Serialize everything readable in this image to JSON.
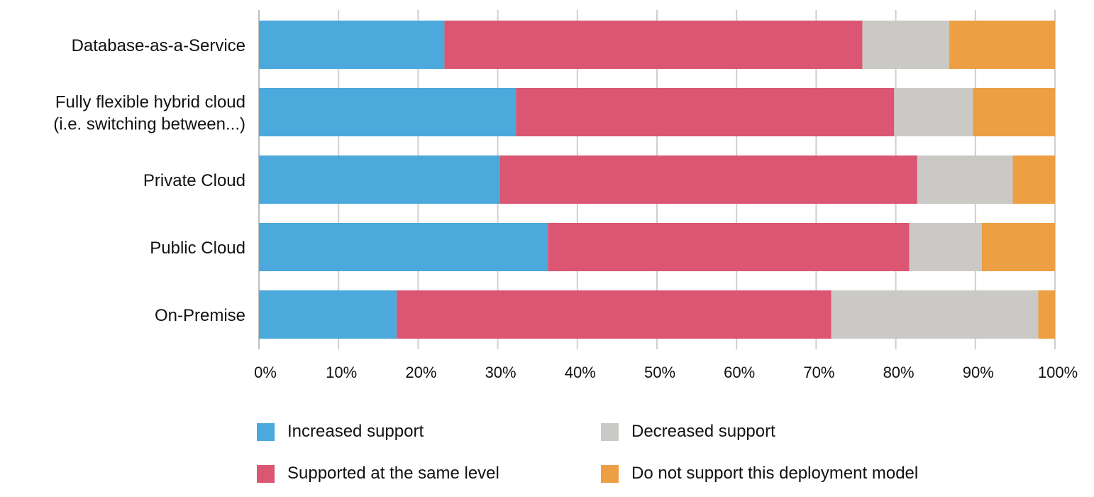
{
  "chart_data": {
    "type": "bar",
    "orientation": "horizontal",
    "stacked": "percent",
    "categories": [
      [
        "Database-as-a-Service"
      ],
      [
        "Fully flexible hybrid cloud",
        "(i.e. switching between...)"
      ],
      [
        "Private Cloud"
      ],
      [
        "Public Cloud"
      ],
      [
        "On-Premise"
      ]
    ],
    "series": [
      {
        "name": "Increased support",
        "color": "#4BA9DB",
        "values": [
          23.3,
          32.3,
          30.3,
          36.3,
          17.3
        ]
      },
      {
        "name": "Supported at the same level",
        "color": "#DB5672",
        "values": [
          52.5,
          47.5,
          52.4,
          45.4,
          54.6
        ]
      },
      {
        "name": "Decreased support",
        "color": "#CBC9C6",
        "values": [
          10.9,
          9.9,
          12.0,
          9.1,
          26.0
        ]
      },
      {
        "name": "Do not support this deployment model",
        "color": "#EC9F43",
        "values": [
          13.3,
          10.3,
          5.3,
          9.2,
          2.1
        ]
      }
    ],
    "xlim": [
      0,
      100
    ],
    "xticks": [
      "0%",
      "10%",
      "20%",
      "30%",
      "40%",
      "50%",
      "60%",
      "70%",
      "80%",
      "90%",
      "100%"
    ],
    "grid": "vertical",
    "legend_position": "bottom"
  },
  "legend": {
    "items": [
      {
        "label": "Increased support",
        "color": "#4BA9DB"
      },
      {
        "label": "Decreased support",
        "color": "#CBC9C6"
      },
      {
        "label": "Supported at the same level",
        "color": "#DB5672"
      },
      {
        "label": "Do not support this deployment model",
        "color": "#EC9F43"
      }
    ]
  }
}
